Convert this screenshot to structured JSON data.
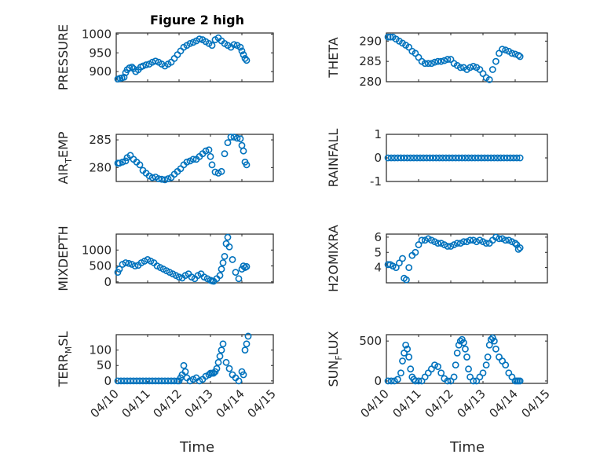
{
  "figure": {
    "title": "Figure 2 high",
    "xlabel": "Time",
    "x_tick_labels": [
      "04/10",
      "04/11",
      "04/12",
      "04/13",
      "04/14",
      "04/15"
    ]
  },
  "colors": {
    "marker": "#0072bd",
    "axes": "#262626",
    "background": "#ffffff"
  },
  "chart_data": [
    {
      "type": "scatter",
      "ylabel": "PRESSURE",
      "ylabel_sub": "",
      "xlim": [
        0,
        5
      ],
      "ylim": [
        873,
        1003
      ],
      "yticks": [
        900,
        950,
        1000
      ],
      "grid": true,
      "x": [
        0.05,
        0.12,
        0.18,
        0.25,
        0.3,
        0.35,
        0.42,
        0.5,
        0.55,
        0.62,
        0.7,
        0.78,
        0.85,
        0.95,
        1.05,
        1.15,
        1.25,
        1.35,
        1.45,
        1.55,
        1.65,
        1.75,
        1.85,
        1.95,
        2.05,
        2.15,
        2.25,
        2.35,
        2.45,
        2.55,
        2.65,
        2.75,
        2.85,
        2.95,
        3.05,
        3.15,
        3.25,
        3.35,
        3.45,
        3.55,
        3.65,
        3.75,
        3.85,
        3.95,
        4.0,
        4.05,
        4.1,
        4.15
      ],
      "y": [
        880,
        882,
        883,
        885,
        897,
        905,
        910,
        912,
        908,
        900,
        905,
        912,
        915,
        918,
        920,
        925,
        928,
        925,
        920,
        915,
        920,
        925,
        935,
        945,
        955,
        965,
        970,
        975,
        978,
        982,
        987,
        985,
        980,
        975,
        970,
        985,
        990,
        982,
        975,
        970,
        965,
        972,
        970,
        965,
        955,
        945,
        935,
        930
      ]
    },
    {
      "type": "scatter",
      "ylabel": "THETA",
      "ylabel_sub": "",
      "xlim": [
        0,
        5
      ],
      "ylim": [
        280,
        292
      ],
      "yticks": [
        280,
        285,
        290
      ],
      "grid": true,
      "x": [
        0.05,
        0.12,
        0.2,
        0.3,
        0.4,
        0.5,
        0.6,
        0.7,
        0.8,
        0.9,
        1.0,
        1.1,
        1.2,
        1.3,
        1.4,
        1.5,
        1.6,
        1.7,
        1.8,
        1.9,
        2.0,
        2.1,
        2.2,
        2.3,
        2.4,
        2.5,
        2.6,
        2.7,
        2.8,
        2.9,
        3.0,
        3.1,
        3.2,
        3.3,
        3.4,
        3.5,
        3.6,
        3.7,
        3.8,
        3.9,
        4.0,
        4.1,
        4.15
      ],
      "y": [
        291,
        291,
        291,
        290.5,
        290,
        289.5,
        289,
        288.5,
        287.5,
        287,
        286,
        285,
        284.5,
        284.5,
        284.5,
        284.8,
        285,
        285,
        285.2,
        285.5,
        285.5,
        284.5,
        284,
        283.5,
        283.5,
        283,
        283.5,
        283.8,
        283.5,
        283,
        282,
        281,
        280.5,
        283,
        285,
        287,
        288,
        287.8,
        287.5,
        287,
        286.8,
        286.5,
        286.2
      ]
    },
    {
      "type": "scatter",
      "ylabel": "AIR",
      "ylabel_sub": "T",
      "ylabel_rest": "EMP",
      "xlim": [
        0,
        5
      ],
      "ylim": [
        277.5,
        286
      ],
      "yticks": [
        280,
        285
      ],
      "grid": true,
      "x": [
        0.05,
        0.1,
        0.2,
        0.3,
        0.35,
        0.45,
        0.55,
        0.65,
        0.75,
        0.85,
        0.95,
        1.05,
        1.15,
        1.25,
        1.35,
        1.45,
        1.55,
        1.65,
        1.75,
        1.85,
        1.95,
        2.05,
        2.15,
        2.25,
        2.35,
        2.45,
        2.55,
        2.65,
        2.75,
        2.85,
        2.95,
        3.0,
        3.05,
        3.15,
        3.25,
        3.35,
        3.45,
        3.55,
        3.65,
        3.75,
        3.85,
        3.95,
        4.0,
        4.05,
        4.1,
        4.15
      ],
      "y": [
        280.8,
        280.8,
        281,
        281.2,
        281.8,
        282.2,
        281.5,
        281,
        280.5,
        279.5,
        279,
        278.5,
        278.2,
        278.3,
        278,
        277.9,
        277.8,
        278,
        278.2,
        278.8,
        279.3,
        279.8,
        280.5,
        281,
        281.2,
        281.5,
        281.5,
        282,
        282.5,
        283,
        283.2,
        282,
        280.5,
        279.2,
        279,
        279.3,
        282.5,
        284.5,
        285.5,
        285.5,
        285.3,
        285.2,
        284,
        283,
        281,
        280.5
      ]
    },
    {
      "type": "scatter",
      "ylabel": "RAINFALL",
      "ylabel_sub": "",
      "xlim": [
        0,
        5
      ],
      "ylim": [
        -1,
        1
      ],
      "yticks": [
        -1,
        0,
        1
      ],
      "grid": true,
      "x": [
        0.05,
        0.15,
        0.25,
        0.35,
        0.45,
        0.55,
        0.65,
        0.75,
        0.85,
        0.95,
        1.05,
        1.15,
        1.25,
        1.35,
        1.45,
        1.55,
        1.65,
        1.75,
        1.85,
        1.95,
        2.05,
        2.15,
        2.25,
        2.35,
        2.45,
        2.55,
        2.65,
        2.75,
        2.85,
        2.95,
        3.05,
        3.15,
        3.25,
        3.35,
        3.45,
        3.55,
        3.65,
        3.75,
        3.85,
        3.95,
        4.05,
        4.15
      ],
      "y": [
        0,
        0,
        0,
        0,
        0,
        0,
        0,
        0,
        0,
        0,
        0,
        0,
        0,
        0,
        0,
        0,
        0,
        0,
        0,
        0,
        0,
        0,
        0,
        0,
        0,
        0,
        0,
        0,
        0,
        0,
        0,
        0,
        0,
        0,
        0,
        0,
        0,
        0,
        0,
        0,
        0,
        0
      ]
    },
    {
      "type": "scatter",
      "ylabel": "MIXDEPTH",
      "ylabel_sub": "",
      "xlim": [
        0,
        5
      ],
      "ylim": [
        -30,
        1500
      ],
      "yticks": [
        0,
        500,
        1000
      ],
      "grid": true,
      "x": [
        0.05,
        0.1,
        0.2,
        0.3,
        0.4,
        0.5,
        0.6,
        0.7,
        0.8,
        0.9,
        1.0,
        1.1,
        1.2,
        1.3,
        1.4,
        1.5,
        1.6,
        1.7,
        1.8,
        1.9,
        2.0,
        2.1,
        2.2,
        2.3,
        2.4,
        2.5,
        2.6,
        2.7,
        2.8,
        2.9,
        3.0,
        3.05,
        3.1,
        3.2,
        3.3,
        3.35,
        3.4,
        3.45,
        3.5,
        3.55,
        3.6,
        3.7,
        3.8,
        3.9,
        4.0,
        4.05,
        4.1,
        4.15
      ],
      "y": [
        300,
        400,
        550,
        600,
        580,
        550,
        500,
        520,
        600,
        650,
        700,
        650,
        600,
        500,
        450,
        400,
        350,
        300,
        250,
        200,
        150,
        120,
        200,
        250,
        150,
        100,
        200,
        250,
        150,
        100,
        50,
        30,
        20,
        100,
        200,
        400,
        600,
        800,
        1200,
        1400,
        1100,
        700,
        300,
        100,
        400,
        500,
        450,
        480
      ]
    },
    {
      "type": "scatter",
      "ylabel": "H2OMIXRA",
      "ylabel_sub": "",
      "xlim": [
        0,
        5
      ],
      "ylim": [
        3,
        6.2
      ],
      "yticks": [
        4,
        5,
        6
      ],
      "grid": true,
      "x": [
        0.05,
        0.12,
        0.2,
        0.3,
        0.4,
        0.5,
        0.55,
        0.62,
        0.7,
        0.8,
        0.9,
        1.0,
        1.1,
        1.2,
        1.3,
        1.4,
        1.5,
        1.6,
        1.7,
        1.8,
        1.9,
        2.0,
        2.1,
        2.2,
        2.3,
        2.4,
        2.5,
        2.6,
        2.7,
        2.8,
        2.9,
        3.0,
        3.1,
        3.2,
        3.3,
        3.4,
        3.5,
        3.6,
        3.7,
        3.8,
        3.9,
        4.0,
        4.05,
        4.1,
        4.15
      ],
      "y": [
        4.2,
        4.2,
        4.1,
        4.0,
        4.3,
        4.6,
        3.3,
        3.2,
        4.0,
        4.8,
        5.0,
        5.5,
        5.8,
        5.8,
        5.9,
        5.8,
        5.7,
        5.6,
        5.6,
        5.5,
        5.4,
        5.4,
        5.5,
        5.6,
        5.6,
        5.7,
        5.7,
        5.8,
        5.8,
        5.7,
        5.8,
        5.7,
        5.6,
        5.6,
        5.8,
        6.0,
        5.9,
        5.9,
        5.8,
        5.8,
        5.7,
        5.6,
        5.5,
        5.2,
        5.3
      ]
    },
    {
      "type": "scatter",
      "ylabel": "TERR",
      "ylabel_sub": "M",
      "ylabel_rest": "SL",
      "xlim": [
        0,
        5
      ],
      "ylim": [
        -8,
        150
      ],
      "yticks": [
        0,
        50,
        100
      ],
      "grid": true,
      "x": [
        0.05,
        0.15,
        0.25,
        0.35,
        0.45,
        0.55,
        0.65,
        0.75,
        0.85,
        0.95,
        1.05,
        1.15,
        1.25,
        1.35,
        1.45,
        1.55,
        1.65,
        1.75,
        1.85,
        1.95,
        2.0,
        2.05,
        2.1,
        2.15,
        2.2,
        2.25,
        2.35,
        2.45,
        2.55,
        2.65,
        2.75,
        2.85,
        2.95,
        3.0,
        3.05,
        3.1,
        3.15,
        3.2,
        3.25,
        3.3,
        3.35,
        3.4,
        3.5,
        3.6,
        3.7,
        3.8,
        3.9,
        4.0,
        4.05,
        4.1,
        4.15,
        4.2
      ],
      "y": [
        0,
        0,
        0,
        0,
        0,
        0,
        0,
        0,
        0,
        0,
        0,
        0,
        0,
        0,
        0,
        0,
        0,
        0,
        0,
        0,
        0,
        10,
        20,
        50,
        30,
        10,
        0,
        5,
        10,
        0,
        5,
        15,
        20,
        25,
        25,
        25,
        30,
        40,
        60,
        80,
        100,
        120,
        60,
        40,
        20,
        10,
        0,
        30,
        20,
        100,
        120,
        145
      ]
    },
    {
      "type": "scatter",
      "ylabel": "SUN",
      "ylabel_sub": "F",
      "ylabel_rest": "LUX",
      "xlim": [
        0,
        5
      ],
      "ylim": [
        -30,
        580
      ],
      "yticks": [
        0,
        500
      ],
      "grid": true,
      "x": [
        0.05,
        0.15,
        0.25,
        0.35,
        0.45,
        0.5,
        0.55,
        0.6,
        0.65,
        0.7,
        0.75,
        0.8,
        0.85,
        0.9,
        1.0,
        1.1,
        1.2,
        1.3,
        1.4,
        1.5,
        1.6,
        1.7,
        1.8,
        1.9,
        2.0,
        2.1,
        2.15,
        2.2,
        2.25,
        2.3,
        2.35,
        2.4,
        2.45,
        2.5,
        2.55,
        2.6,
        2.7,
        2.8,
        2.9,
        3.0,
        3.1,
        3.15,
        3.2,
        3.25,
        3.3,
        3.35,
        3.4,
        3.5,
        3.6,
        3.7,
        3.8,
        3.9,
        4.0,
        4.05,
        4.1,
        4.15
      ],
      "y": [
        0,
        0,
        0,
        20,
        100,
        250,
        350,
        450,
        400,
        300,
        150,
        50,
        20,
        0,
        0,
        0,
        50,
        100,
        150,
        200,
        180,
        100,
        30,
        0,
        0,
        50,
        200,
        350,
        450,
        500,
        520,
        480,
        400,
        300,
        150,
        50,
        0,
        0,
        50,
        100,
        200,
        300,
        450,
        520,
        540,
        500,
        400,
        300,
        250,
        200,
        100,
        50,
        0,
        0,
        0,
        0
      ]
    }
  ]
}
